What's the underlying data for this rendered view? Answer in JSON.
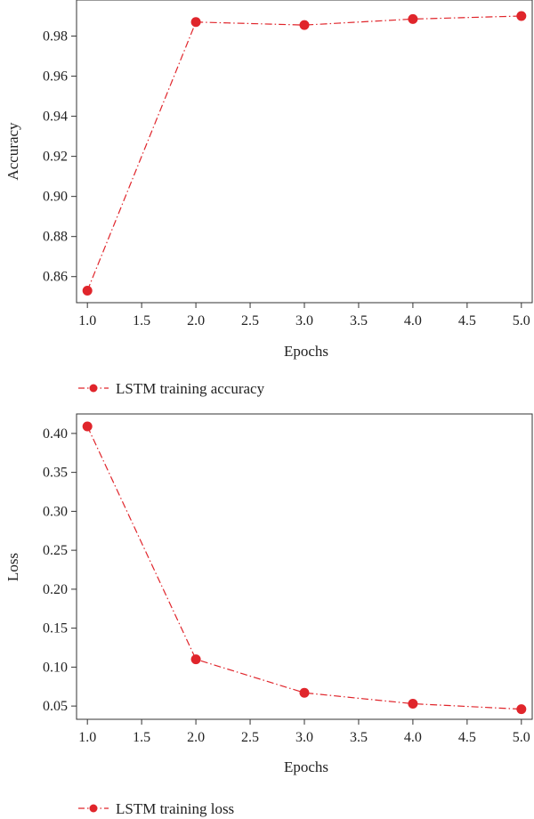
{
  "colors": {
    "series": "#e0252b",
    "axis": "#333333"
  },
  "chart_data": [
    {
      "type": "line",
      "title": "",
      "xlabel": "Epochs",
      "ylabel": "Accuracy",
      "xlim": [
        0.9,
        5.1
      ],
      "ylim": [
        0.847,
        0.998
      ],
      "xticks": [
        "1.0",
        "1.5",
        "2.0",
        "2.5",
        "3.0",
        "3.5",
        "4.0",
        "4.5",
        "5.0"
      ],
      "yticks": [
        "0.86",
        "0.88",
        "0.90",
        "0.92",
        "0.94",
        "0.96",
        "0.98"
      ],
      "grid": false,
      "legend_position": "bottom-left",
      "series": [
        {
          "name": "LSTM training accuracy",
          "x": [
            1,
            2,
            3,
            4,
            5
          ],
          "y": [
            0.853,
            0.987,
            0.9855,
            0.9885,
            0.99
          ]
        }
      ]
    },
    {
      "type": "line",
      "title": "",
      "xlabel": "Epochs",
      "ylabel": "Loss",
      "xlim": [
        0.9,
        5.1
      ],
      "ylim": [
        0.033,
        0.425
      ],
      "xticks": [
        "1.0",
        "1.5",
        "2.0",
        "2.5",
        "3.0",
        "3.5",
        "4.0",
        "4.5",
        "5.0"
      ],
      "yticks": [
        "0.05",
        "0.10",
        "0.15",
        "0.20",
        "0.25",
        "0.30",
        "0.35",
        "0.40"
      ],
      "grid": false,
      "legend_position": "bottom-left",
      "series": [
        {
          "name": "LSTM training loss",
          "x": [
            1,
            2,
            3,
            4,
            5
          ],
          "y": [
            0.409,
            0.11,
            0.067,
            0.053,
            0.046
          ]
        }
      ]
    }
  ]
}
